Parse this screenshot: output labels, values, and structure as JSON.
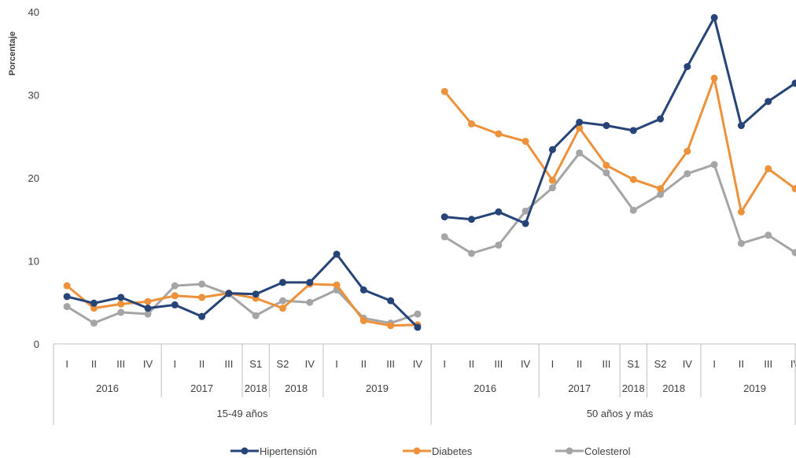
{
  "chart_data": {
    "type": "line",
    "ylabel": "Porcentaje",
    "ylim": [
      0,
      40
    ],
    "yticks": [
      0,
      10,
      20,
      30,
      40
    ],
    "grid": false,
    "legend_position": "bottom",
    "x_levels": {
      "periods": [
        "I",
        "II",
        "III",
        "IV",
        "I",
        "II",
        "III",
        "S1",
        "S2",
        "IV",
        "I",
        "II",
        "III",
        "IV",
        "I",
        "II",
        "III",
        "IV",
        "I",
        "II",
        "III",
        "S1",
        "S2",
        "IV",
        "I",
        "II",
        "III",
        "IV"
      ],
      "years": [
        {
          "label": "2016",
          "span": 4
        },
        {
          "label": "2017",
          "span": 3
        },
        {
          "label": "2018",
          "span": 1
        },
        {
          "label": "2018",
          "span": 2
        },
        {
          "label": "2019",
          "span": 4
        },
        {
          "label": "2016",
          "span": 4
        },
        {
          "label": "2017",
          "span": 3
        },
        {
          "label": "2018",
          "span": 1
        },
        {
          "label": "2018",
          "span": 2
        },
        {
          "label": "2019",
          "span": 4
        }
      ],
      "groups": [
        {
          "label": "15-49 años",
          "span": 14
        },
        {
          "label": "50 años y más",
          "span": 14
        }
      ]
    },
    "series": [
      {
        "name": "Hipertensión",
        "color": "#264478",
        "segments": [
          [
            5.7,
            4.9,
            5.6,
            4.3,
            4.7,
            3.3,
            6.1,
            6.0,
            7.4,
            7.4,
            10.8,
            6.5,
            5.2,
            2.0
          ],
          [
            15.3,
            15.0,
            15.9,
            14.5,
            23.4,
            26.7,
            26.3,
            25.7,
            27.1,
            33.4,
            39.3,
            26.3,
            29.2,
            31.4
          ]
        ]
      },
      {
        "name": "Diabetes",
        "color": "#ED913B",
        "segments": [
          [
            7.0,
            4.3,
            4.8,
            5.1,
            5.8,
            5.6,
            6.1,
            5.5,
            4.3,
            7.2,
            7.1,
            2.8,
            2.2,
            2.3
          ],
          [
            30.4,
            26.5,
            25.3,
            24.4,
            19.7,
            26.0,
            21.5,
            19.8,
            18.7,
            23.2,
            32.0,
            15.9,
            21.1,
            18.7
          ]
        ]
      },
      {
        "name": "Colesterol",
        "color": "#A5A5A5",
        "segments": [
          [
            4.5,
            2.5,
            3.8,
            3.6,
            7.0,
            7.2,
            6.0,
            3.4,
            5.2,
            5.0,
            6.5,
            3.1,
            2.5,
            3.6
          ],
          [
            12.9,
            10.9,
            11.9,
            16.0,
            18.8,
            23.0,
            20.6,
            16.1,
            18.0,
            20.5,
            21.6,
            12.1,
            13.1,
            11.0
          ]
        ]
      }
    ]
  }
}
